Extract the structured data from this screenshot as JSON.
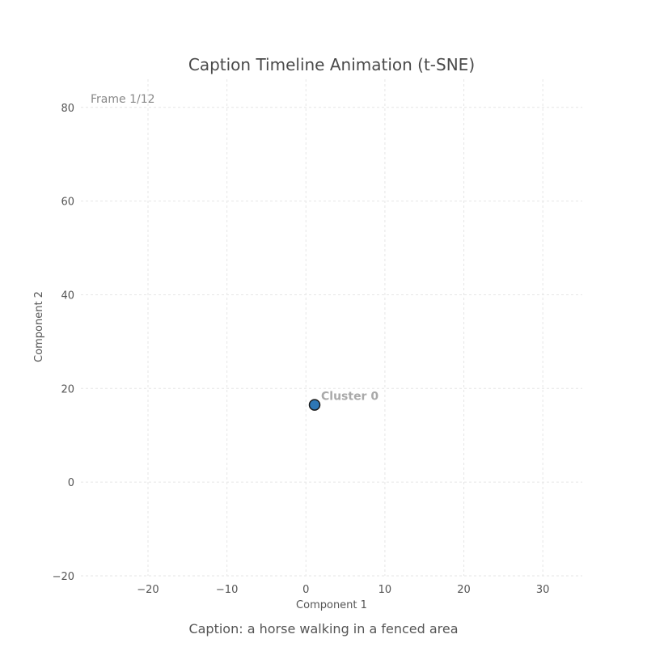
{
  "chart_data": {
    "type": "scatter",
    "title": "Caption Timeline Animation (t-SNE)",
    "xlabel": "Component 1",
    "ylabel": "Component 2",
    "xlim": [
      -28.5,
      35
    ],
    "ylim": [
      -20,
      86
    ],
    "xticks": [
      -20,
      -10,
      0,
      10,
      20,
      30
    ],
    "yticks": [
      -20,
      0,
      20,
      40,
      60,
      80
    ],
    "xtick_labels": [
      "−20",
      "−10",
      "0",
      "10",
      "20",
      "30"
    ],
    "ytick_labels": [
      "−20",
      "0",
      "20",
      "40",
      "60",
      "80"
    ],
    "grid": true,
    "frame_label": "Frame 1/12",
    "caption": "Caption: a horse walking in a fenced area",
    "points": [
      {
        "x": 1.1,
        "y": 16.5,
        "label": "Cluster 0",
        "color": "#2e77b5"
      }
    ]
  }
}
